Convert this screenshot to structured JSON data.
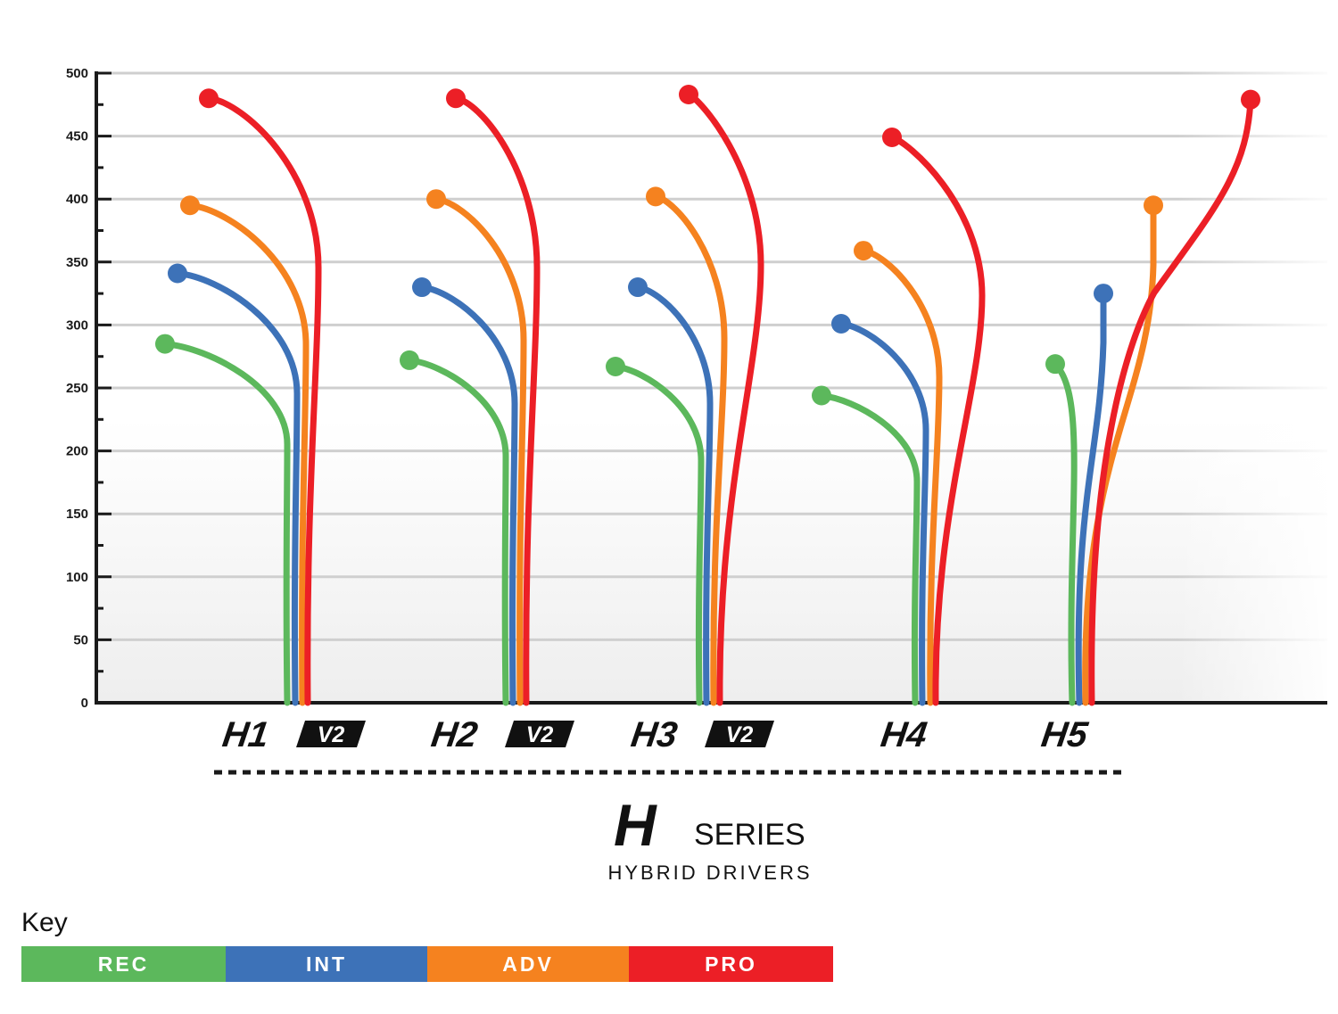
{
  "chart_data": {
    "type": "line",
    "ylim": [
      0,
      500
    ],
    "yticks": [
      "0",
      "50",
      "100",
      "150",
      "200",
      "250",
      "300",
      "350",
      "400",
      "450",
      "500"
    ],
    "grid": true,
    "categories": [
      {
        "name": "H1",
        "suffix": "V2"
      },
      {
        "name": "H2",
        "suffix": "V2"
      },
      {
        "name": "H3",
        "suffix": "V2"
      },
      {
        "name": "H4",
        "suffix": ""
      },
      {
        "name": "H5",
        "suffix": ""
      }
    ],
    "series": [
      {
        "name": "REC",
        "color": "#5cb85c",
        "values": [
          285,
          272,
          267,
          244,
          269
        ]
      },
      {
        "name": "INT",
        "color": "#3d72b8",
        "values": [
          341,
          330,
          330,
          301,
          325
        ]
      },
      {
        "name": "ADV",
        "color": "#f5821f",
        "values": [
          395,
          400,
          402,
          359,
          395
        ]
      },
      {
        "name": "PRO",
        "color": "#ec1f26",
        "values": [
          480,
          480,
          483,
          449,
          479
        ]
      }
    ],
    "brand": {
      "mark": "H",
      "word": "SERIES",
      "subtitle": "HYBRID DRIVERS"
    },
    "legend": {
      "title": "Key",
      "placement": "bottom-left"
    }
  }
}
